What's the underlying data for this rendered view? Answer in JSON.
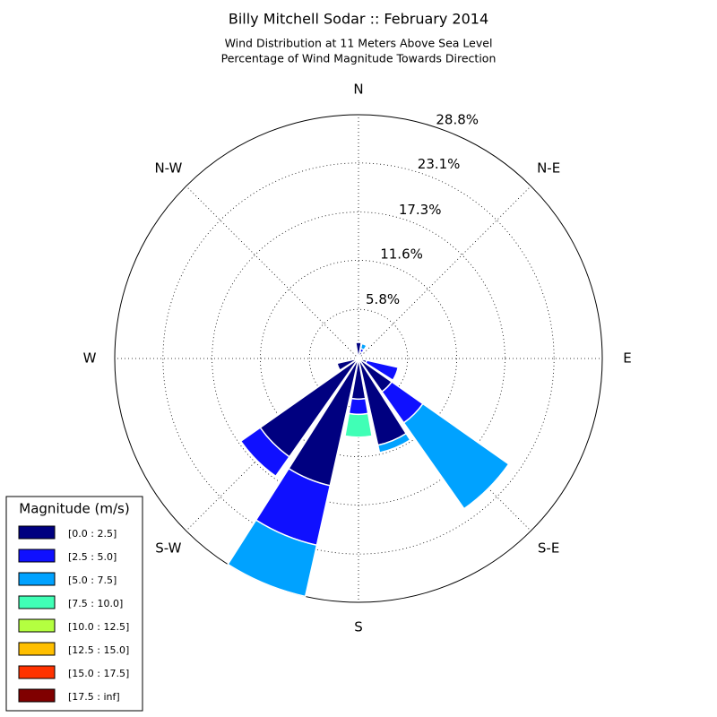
{
  "chart_data": {
    "type": "windrose",
    "title": "Billy Mitchell Sodar :: February 2014",
    "subtitle": [
      "Wind Distribution at 11 Meters Above Sea Level",
      "Percentage of Wind Magnitude Towards Direction"
    ],
    "categories": [
      "N",
      null,
      "N-E",
      null,
      "E",
      null,
      "S-E",
      null,
      "S",
      null,
      "S-W",
      null,
      "W",
      null,
      "N-W",
      null
    ],
    "ylim": [
      0,
      28.8
    ],
    "yticks": [
      {
        "value": 5.8,
        "label": "5.8%"
      },
      {
        "value": 11.6,
        "label": "11.6%"
      },
      {
        "value": 17.3,
        "label": "17.3%"
      },
      {
        "value": 23.1,
        "label": "23.1%"
      },
      {
        "value": 28.8,
        "label": "28.8%"
      }
    ],
    "grid": true,
    "legend_title": "Magnitude (m/s)",
    "legend_position": "lower left",
    "series": [
      {
        "name": "[0.0 : 2.5]",
        "color": "#000080",
        "values": [
          1.9,
          0.8,
          0,
          0,
          0,
          1.0,
          4.8,
          10.5,
          4.8,
          15.4,
          14.2,
          2.6,
          0,
          0,
          0,
          0
        ]
      },
      {
        "name": "[2.5 : 5.0]",
        "color": "#0f10ff",
        "values": [
          0,
          0.4,
          0,
          0,
          0,
          3.8,
          4.5,
          0,
          1.8,
          7.2,
          2.8,
          0,
          0,
          0,
          0,
          0
        ]
      },
      {
        "name": "[5.0 : 7.5]",
        "color": "#00a2ff",
        "values": [
          0,
          0.6,
          0,
          0,
          0,
          0,
          12.4,
          0.9,
          0,
          6.2,
          0,
          0,
          0,
          0,
          0,
          0
        ]
      },
      {
        "name": "[7.5 : 10.0]",
        "color": "#40ffb6",
        "values": [
          0,
          0,
          0,
          0,
          0,
          0,
          0,
          0,
          2.7,
          0,
          0,
          0,
          0,
          0,
          0,
          0
        ]
      },
      {
        "name": "[10.0 : 12.5]",
        "color": "#b4ff40",
        "values": [
          0,
          0,
          0,
          0,
          0,
          0,
          0,
          0,
          0,
          0,
          0,
          0,
          0,
          0,
          0,
          0
        ]
      },
      {
        "name": "[12.5 : 15.0]",
        "color": "#ffbf00",
        "values": [
          0,
          0,
          0,
          0,
          0,
          0,
          0,
          0,
          0,
          0,
          0,
          0,
          0,
          0,
          0,
          0
        ]
      },
      {
        "name": "[15.0 : 17.5]",
        "color": "#ff3300",
        "values": [
          0,
          0,
          0,
          0,
          0,
          0,
          0,
          0,
          0,
          0,
          0,
          0,
          0,
          0,
          0,
          0
        ]
      },
      {
        "name": "[17.5 : inf]",
        "color": "#800000",
        "values": [
          0,
          0,
          0,
          0,
          0,
          0,
          0,
          0,
          0,
          0,
          0,
          0,
          0,
          0,
          0,
          0
        ]
      }
    ]
  }
}
